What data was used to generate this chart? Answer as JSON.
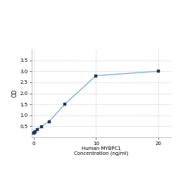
{
  "x": [
    0,
    0.078,
    0.156,
    0.313,
    0.625,
    1.25,
    2.5,
    5,
    10,
    20
  ],
  "y": [
    0.18,
    0.2,
    0.22,
    0.27,
    0.35,
    0.48,
    0.72,
    1.5,
    2.8,
    3.0
  ],
  "line_color": "#7fb3d9",
  "marker_color": "#1f3864",
  "marker_size": 3,
  "line_width": 1.0,
  "xlabel_line1": "Human MYBPC1",
  "xlabel_line2": "Concentration (ng/ml)",
  "ylabel": "OD",
  "xlim": [
    -0.3,
    22
  ],
  "ylim": [
    0.0,
    4.0
  ],
  "yticks": [
    0.5,
    1.0,
    1.5,
    2.0,
    2.5,
    3.0,
    3.5
  ],
  "xticks": [
    0,
    10,
    20
  ],
  "grid_color": "#d0d0d0",
  "background_color": "#ffffff",
  "xlabel_fontsize": 5.0,
  "ylabel_fontsize": 5.5,
  "tick_fontsize": 5.0
}
